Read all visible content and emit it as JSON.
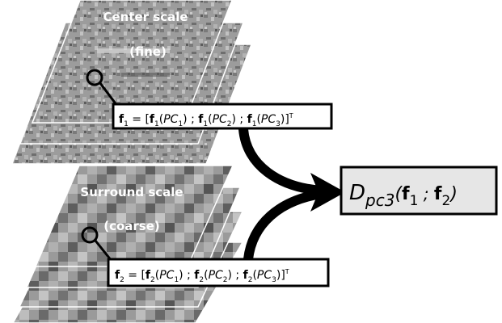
{
  "center": {
    "title": "Center scale",
    "subtitle": "(fine)",
    "eq": {
      "f": "f",
      "sub": "1",
      "eq_open": " = [",
      "pc1": "PC",
      "pc2": "PC",
      "pc3": "PC",
      "s1": "1",
      "s2": "2",
      "s3": "3",
      "sep": " ; ",
      "close": "]",
      "sup": "T"
    }
  },
  "surround": {
    "title": "Surround scale",
    "subtitle": "(coarse)",
    "eq": {
      "f": "f",
      "sub": "2",
      "eq_open": " = [",
      "pc1": "PC",
      "pc2": "PC",
      "pc3": "PC",
      "s1": "1",
      "s2": "2",
      "s3": "3",
      "sep": " ; ",
      "close": "]",
      "sup": "T"
    }
  },
  "result": {
    "d": "D",
    "sub": "pc3",
    "open": "(",
    "f": "f",
    "one": "1",
    "sep": " ; ",
    "two": "2",
    "close": ")"
  },
  "colors": {
    "ink": "#000000",
    "result_fill": "#e6e6e6",
    "texture_dark": "#6a6a6a",
    "texture_light": "#bdbdbd"
  }
}
